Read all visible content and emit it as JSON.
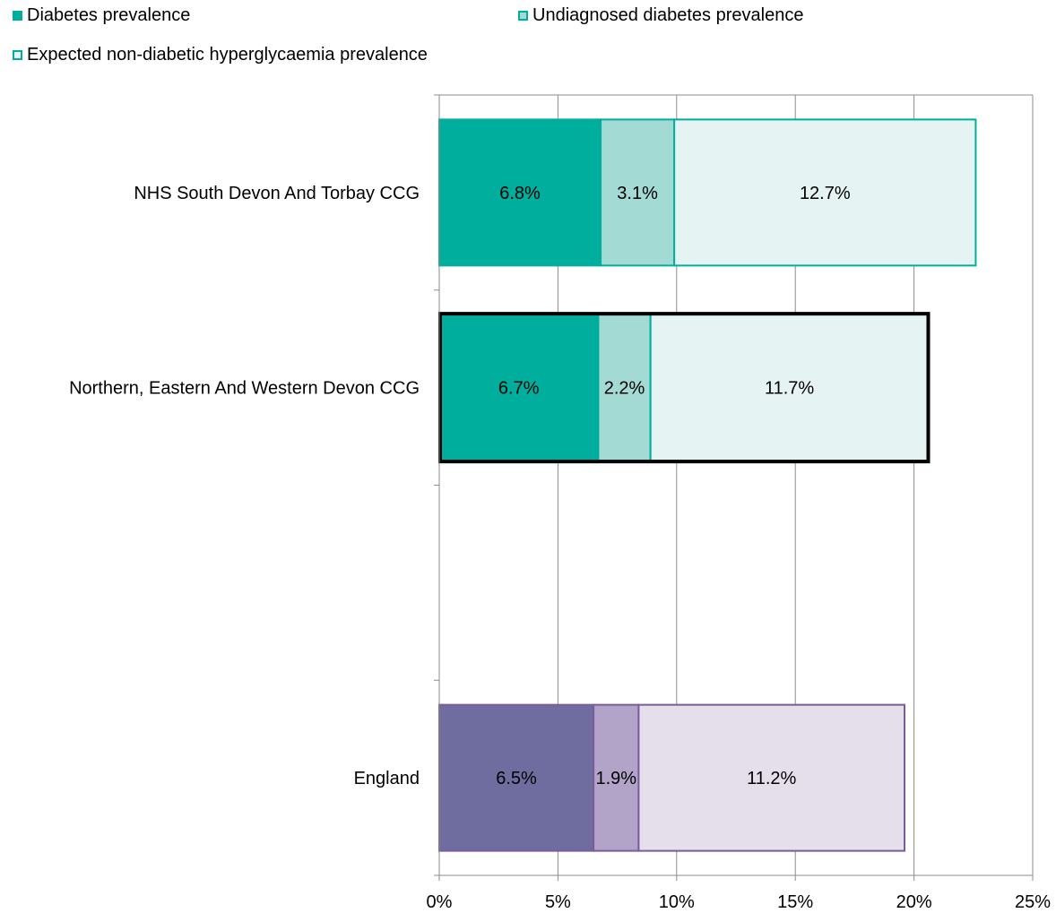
{
  "legend": {
    "items": [
      {
        "label": "Diabetes prevalence",
        "style": "solid",
        "color": "#00AE9D",
        "border": "#00AE9D"
      },
      {
        "label": "Undiagnosed diabetes prevalence",
        "style": "light",
        "color": "#A3DAD4",
        "border": "#00AE9D"
      },
      {
        "label": "Expected non-diabetic hyperglycaemia prevalence",
        "style": "outline",
        "color": "#E5F4F2",
        "border": "#00AE9D"
      }
    ]
  },
  "chart_data": {
    "type": "bar",
    "orientation": "horizontal",
    "stacked": true,
    "categories": [
      "NHS South Devon And Torbay CCG",
      "Northern, Eastern And Western Devon CCG",
      "",
      "England"
    ],
    "series": [
      {
        "name": "Diabetes prevalence",
        "values": [
          6.8,
          6.7,
          null,
          6.5
        ],
        "labels": [
          "6.8%",
          "6.7%",
          "",
          "6.5%"
        ]
      },
      {
        "name": "Undiagnosed diabetes prevalence",
        "values": [
          3.1,
          2.2,
          null,
          1.9
        ],
        "labels": [
          "3.1%",
          "2.2%",
          "",
          "1.9%"
        ]
      },
      {
        "name": "Expected non-diabetic hyperglycaemia prevalence",
        "values": [
          12.7,
          11.7,
          null,
          11.2
        ],
        "labels": [
          "12.7%",
          "11.7%",
          "",
          "11.2%"
        ]
      }
    ],
    "highlighted_category": "Northern, Eastern And Western Devon CCG",
    "xlim": [
      0,
      25
    ],
    "xticks": [
      0,
      5,
      10,
      15,
      20,
      25
    ],
    "xtick_labels": [
      "0%",
      "5%",
      "10%",
      "15%",
      "20%",
      "25%"
    ],
    "grid": "vertical",
    "legend_position": "top",
    "colors": {
      "teal": [
        "#00AE9D",
        "#A3DAD4",
        "#E5F4F2"
      ],
      "teal_border": "#00AE9D",
      "purple": [
        "#6F6D9F",
        "#B2A3C8",
        "#E5DFEC"
      ],
      "purple_border": "#7B5C9B",
      "highlight_border": "#000000"
    }
  }
}
